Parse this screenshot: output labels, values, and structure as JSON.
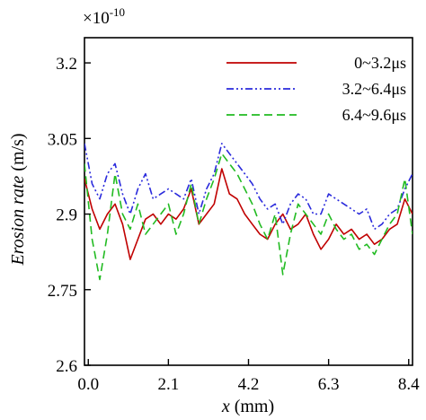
{
  "chart_data": {
    "type": "line",
    "xlabel_var": "x",
    "xlabel_unit": " (mm)",
    "ylabel_var": "Erosion rate",
    "ylabel_unit": " (m/s)",
    "y_multiplier_base": "×10",
    "y_multiplier_exp": "-10",
    "xlim": [
      -0.1,
      8.5
    ],
    "ylim": [
      2.6,
      3.25
    ],
    "xticks": [
      0.0,
      2.1,
      4.2,
      6.3,
      8.4
    ],
    "xtick_labels": [
      "0.0",
      "2.1",
      "4.2",
      "6.3",
      "8.4"
    ],
    "yticks": [
      2.6,
      2.75,
      2.9,
      3.05,
      3.2
    ],
    "ytick_labels": [
      "2.6",
      "2.75",
      "2.9",
      "3.05",
      "3.2"
    ],
    "legend_position": "top-right",
    "grid": false,
    "series": [
      {
        "name": "0~3.2μs",
        "color": "#c00000",
        "dash": "solid",
        "x": [
          -0.1,
          0.1,
          0.3,
          0.5,
          0.7,
          0.9,
          1.1,
          1.3,
          1.5,
          1.7,
          1.9,
          2.1,
          2.3,
          2.5,
          2.7,
          2.9,
          3.1,
          3.3,
          3.5,
          3.7,
          3.9,
          4.1,
          4.3,
          4.5,
          4.7,
          4.9,
          5.1,
          5.3,
          5.5,
          5.7,
          5.9,
          6.1,
          6.3,
          6.5,
          6.7,
          6.9,
          7.1,
          7.3,
          7.5,
          7.7,
          7.9,
          8.1,
          8.3,
          8.5
        ],
        "y": [
          2.97,
          2.91,
          2.87,
          2.9,
          2.92,
          2.88,
          2.81,
          2.85,
          2.89,
          2.9,
          2.88,
          2.9,
          2.89,
          2.91,
          2.95,
          2.88,
          2.9,
          2.92,
          2.99,
          2.94,
          2.93,
          2.9,
          2.88,
          2.86,
          2.85,
          2.88,
          2.9,
          2.87,
          2.88,
          2.9,
          2.86,
          2.83,
          2.85,
          2.88,
          2.86,
          2.87,
          2.85,
          2.86,
          2.84,
          2.85,
          2.87,
          2.88,
          2.93,
          2.9
        ]
      },
      {
        "name": "3.2~6.4μs",
        "color": "#2a2adc",
        "dash": "dashdotdot",
        "x": [
          -0.1,
          0.1,
          0.3,
          0.5,
          0.7,
          0.9,
          1.1,
          1.3,
          1.5,
          1.7,
          1.9,
          2.1,
          2.3,
          2.5,
          2.7,
          2.9,
          3.1,
          3.3,
          3.5,
          3.7,
          3.9,
          4.1,
          4.3,
          4.5,
          4.7,
          4.9,
          5.1,
          5.3,
          5.5,
          5.7,
          5.9,
          6.1,
          6.3,
          6.5,
          6.7,
          6.9,
          7.1,
          7.3,
          7.5,
          7.7,
          7.9,
          8.1,
          8.3,
          8.5
        ],
        "y": [
          3.04,
          2.96,
          2.93,
          2.98,
          3.0,
          2.94,
          2.9,
          2.95,
          2.98,
          2.93,
          2.94,
          2.95,
          2.94,
          2.93,
          2.97,
          2.9,
          2.95,
          2.98,
          3.04,
          3.02,
          3.0,
          2.98,
          2.96,
          2.93,
          2.91,
          2.92,
          2.88,
          2.92,
          2.94,
          2.93,
          2.9,
          2.9,
          2.94,
          2.93,
          2.92,
          2.91,
          2.9,
          2.91,
          2.87,
          2.88,
          2.9,
          2.91,
          2.95,
          2.98
        ]
      },
      {
        "name": "6.4~9.6μs",
        "color": "#22bb22",
        "dash": "dash",
        "x": [
          -0.1,
          0.1,
          0.3,
          0.5,
          0.7,
          0.9,
          1.1,
          1.3,
          1.5,
          1.7,
          1.9,
          2.1,
          2.3,
          2.5,
          2.7,
          2.9,
          3.1,
          3.3,
          3.5,
          3.7,
          3.9,
          4.1,
          4.3,
          4.5,
          4.7,
          4.9,
          5.1,
          5.3,
          5.5,
          5.7,
          5.9,
          6.1,
          6.3,
          6.5,
          6.7,
          6.9,
          7.1,
          7.3,
          7.5,
          7.7,
          7.9,
          8.1,
          8.3,
          8.5
        ],
        "y": [
          3.0,
          2.85,
          2.77,
          2.86,
          2.98,
          2.9,
          2.87,
          2.92,
          2.86,
          2.88,
          2.9,
          2.92,
          2.86,
          2.9,
          2.96,
          2.88,
          2.93,
          2.97,
          3.02,
          3.0,
          2.98,
          2.95,
          2.92,
          2.88,
          2.85,
          2.9,
          2.78,
          2.86,
          2.92,
          2.9,
          2.88,
          2.86,
          2.9,
          2.87,
          2.85,
          2.86,
          2.83,
          2.84,
          2.82,
          2.85,
          2.88,
          2.9,
          2.97,
          2.86
        ]
      }
    ]
  }
}
